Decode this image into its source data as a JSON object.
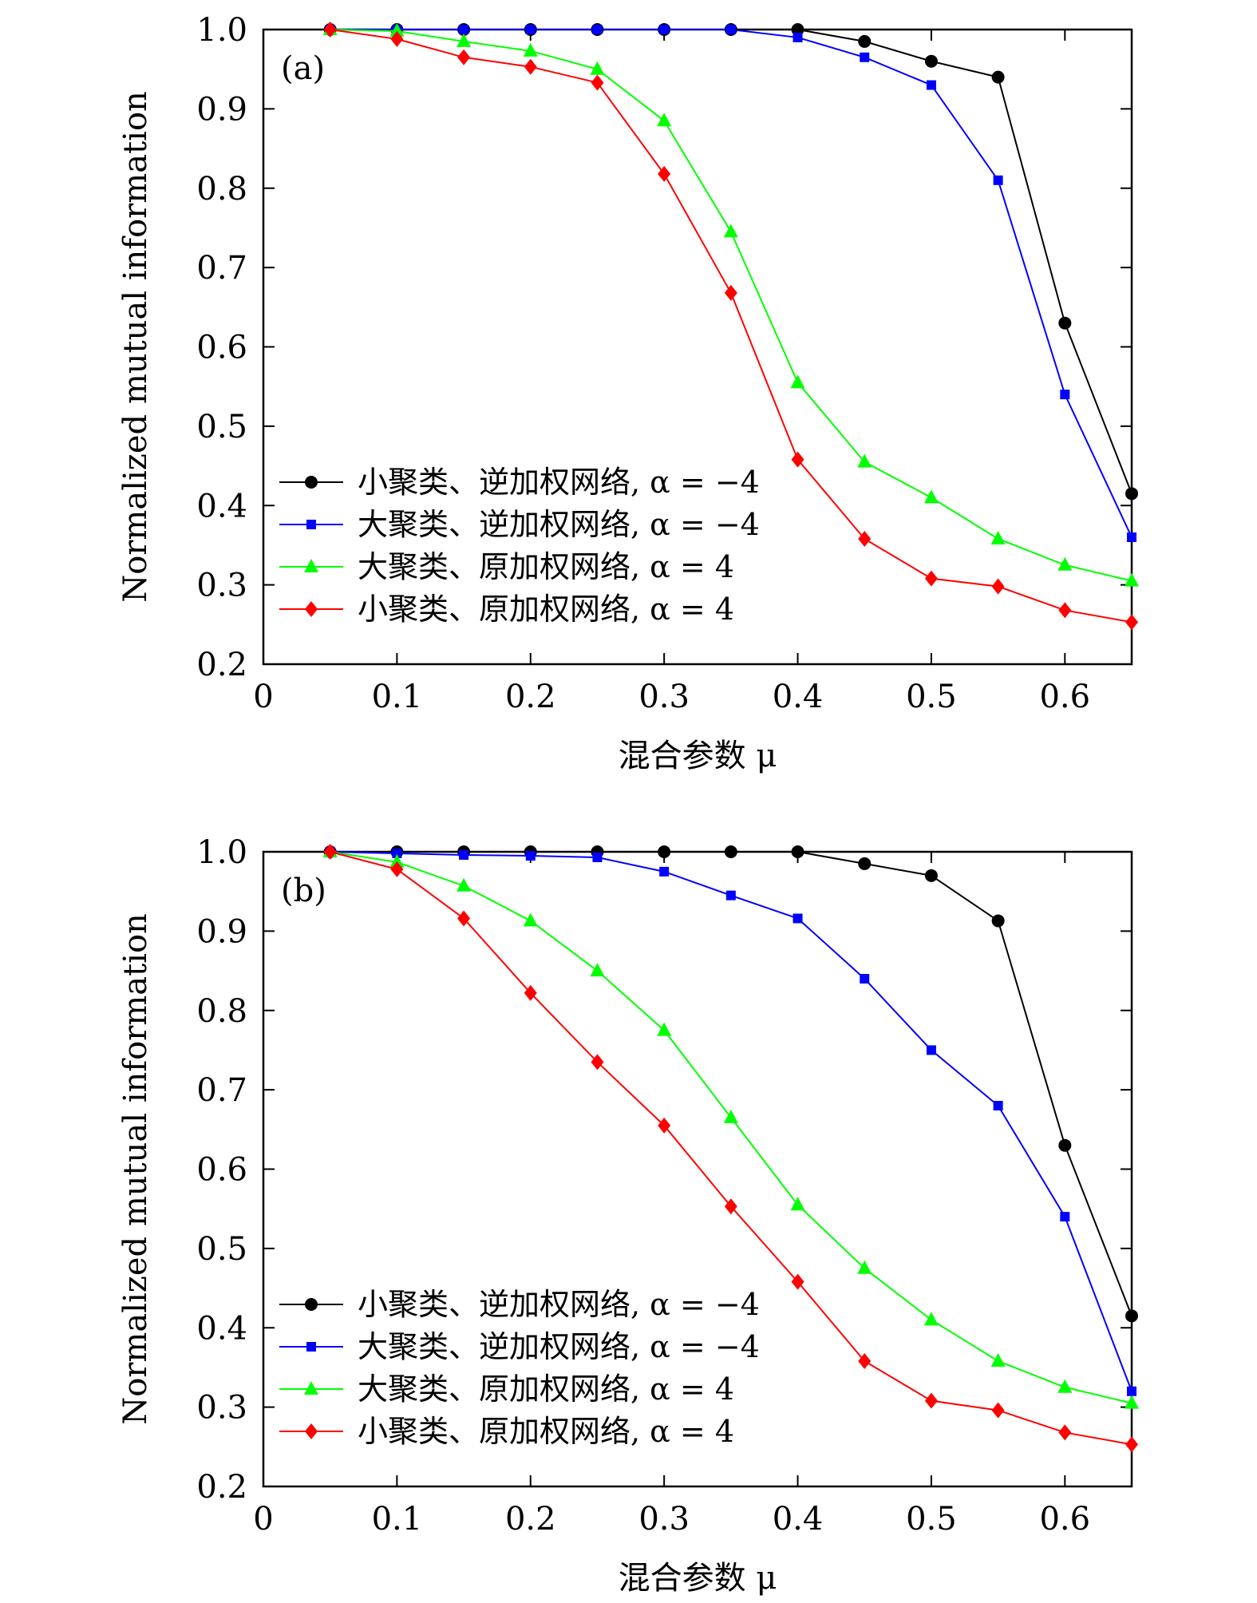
{
  "chart_data": [
    {
      "type": "line",
      "panel_label": "(a)",
      "xlabel": "混合参数 μ",
      "ylabel": "Normalized mutual information",
      "xlim": [
        0,
        0.65
      ],
      "ylim": [
        0.2,
        1.0
      ],
      "xticks": [
        0,
        0.1,
        0.2,
        0.3,
        0.4,
        0.5,
        0.6
      ],
      "xtick_labels": [
        "0",
        "0.1",
        "0.2",
        "0.3",
        "0.4",
        "0.5",
        "0.6"
      ],
      "yticks": [
        0.2,
        0.3,
        0.4,
        0.5,
        0.6,
        0.7,
        0.8,
        0.9,
        1.0
      ],
      "ytick_labels": [
        "0.2",
        "0.3",
        "0.4",
        "0.5",
        "0.6",
        "0.7",
        "0.8",
        "0.9",
        "1.0"
      ],
      "grid": false,
      "legend_position": "lower-left",
      "x": [
        0.05,
        0.1,
        0.15,
        0.2,
        0.25,
        0.3,
        0.35,
        0.4,
        0.45,
        0.5,
        0.55,
        0.6,
        0.65
      ],
      "series": [
        {
          "name": "小聚类、逆加权网络, α = −4",
          "color": "#000000",
          "marker": "circle",
          "values": [
            1.0,
            1.0,
            1.0,
            1.0,
            1.0,
            1.0,
            1.0,
            1.0,
            0.985,
            0.96,
            0.94,
            0.63,
            0.415
          ]
        },
        {
          "name": "大聚类、逆加权网络, α = −4",
          "color": "#0000ff",
          "marker": "square",
          "values": [
            1.0,
            1.0,
            1.0,
            1.0,
            1.0,
            1.0,
            1.0,
            0.99,
            0.965,
            0.93,
            0.81,
            0.54,
            0.36
          ]
        },
        {
          "name": "大聚类、原加权网络, α = 4",
          "color": "#00ff00",
          "marker": "triangle",
          "values": [
            1.0,
            0.998,
            0.985,
            0.973,
            0.95,
            0.885,
            0.745,
            0.555,
            0.455,
            0.41,
            0.358,
            0.325,
            0.305
          ]
        },
        {
          "name": "小聚类、原加权网络, α = 4",
          "color": "#ff0000",
          "marker": "diamond",
          "values": [
            1.0,
            0.988,
            0.965,
            0.953,
            0.933,
            0.818,
            0.668,
            0.458,
            0.358,
            0.308,
            0.298,
            0.268,
            0.253
          ]
        }
      ]
    },
    {
      "type": "line",
      "panel_label": "(b)",
      "xlabel": "混合参数 μ",
      "ylabel": "Normalized mutual information",
      "xlim": [
        0,
        0.65
      ],
      "ylim": [
        0.2,
        1.0
      ],
      "xticks": [
        0,
        0.1,
        0.2,
        0.3,
        0.4,
        0.5,
        0.6
      ],
      "xtick_labels": [
        "0",
        "0.1",
        "0.2",
        "0.3",
        "0.4",
        "0.5",
        "0.6"
      ],
      "yticks": [
        0.2,
        0.3,
        0.4,
        0.5,
        0.6,
        0.7,
        0.8,
        0.9,
        1.0
      ],
      "ytick_labels": [
        "0.2",
        "0.3",
        "0.4",
        "0.5",
        "0.6",
        "0.7",
        "0.8",
        "0.9",
        "1.0"
      ],
      "grid": false,
      "legend_position": "lower-left",
      "x": [
        0.05,
        0.1,
        0.15,
        0.2,
        0.25,
        0.3,
        0.35,
        0.4,
        0.45,
        0.5,
        0.55,
        0.6,
        0.65
      ],
      "series": [
        {
          "name": "小聚类、逆加权网络, α = −4",
          "color": "#000000",
          "marker": "circle",
          "values": [
            1.0,
            1.0,
            1.0,
            1.0,
            1.0,
            1.0,
            1.0,
            1.0,
            0.985,
            0.97,
            0.913,
            0.63,
            0.415
          ]
        },
        {
          "name": "大聚类、逆加权网络, α = −4",
          "color": "#0000ff",
          "marker": "square",
          "values": [
            1.0,
            0.998,
            0.996,
            0.995,
            0.993,
            0.975,
            0.945,
            0.916,
            0.84,
            0.75,
            0.68,
            0.54,
            0.32
          ]
        },
        {
          "name": "大聚类、原加权网络, α = 4",
          "color": "#00ff00",
          "marker": "triangle",
          "values": [
            1.0,
            0.987,
            0.957,
            0.913,
            0.85,
            0.775,
            0.665,
            0.555,
            0.475,
            0.41,
            0.358,
            0.325,
            0.305
          ]
        },
        {
          "name": "小聚类、原加权网络, α = 4",
          "color": "#ff0000",
          "marker": "diamond",
          "values": [
            1.0,
            0.978,
            0.916,
            0.822,
            0.735,
            0.655,
            0.553,
            0.458,
            0.358,
            0.308,
            0.296,
            0.268,
            0.253
          ]
        }
      ]
    }
  ]
}
